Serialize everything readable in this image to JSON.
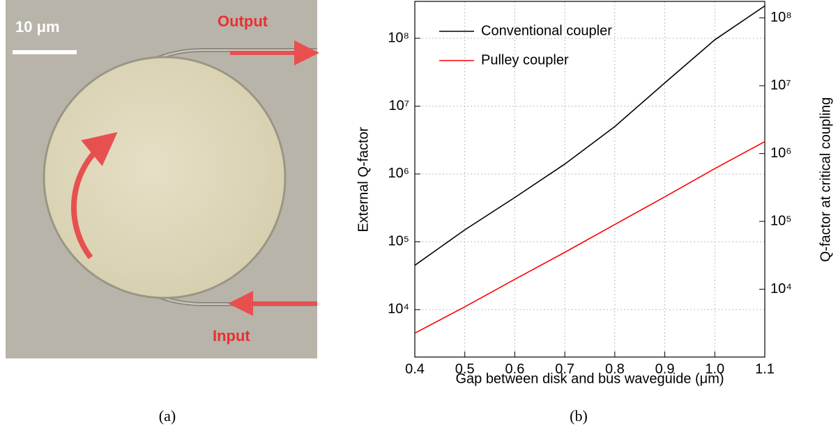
{
  "panel_a": {
    "scale_bar": "10 μm",
    "output": "Output",
    "input": "Input",
    "caption": "(a)"
  },
  "caption_b": "(b)",
  "chart_data": {
    "type": "line",
    "xlabel": "Gap between disk and bus waveguide (μm)",
    "ylabel": "External Q-factor",
    "y2label": "Q-factor at critical coupling",
    "x": [
      0.4,
      0.5,
      0.6,
      0.7,
      0.8,
      0.9,
      1.0,
      1.1
    ],
    "series": [
      {
        "name": "Conventional coupler",
        "color": "#000000",
        "values": [
          45000,
          150000,
          450000,
          1400000,
          5000000,
          22000000,
          95000000,
          300000000
        ]
      },
      {
        "name": "Pulley coupler",
        "color": "#ff0000",
        "values": [
          4500,
          11000,
          28000,
          70000,
          180000,
          460000,
          1200000,
          3000000
        ]
      }
    ],
    "xlim": [
      0.4,
      1.1
    ],
    "xticks": [
      0.4,
      0.5,
      0.6,
      0.7,
      0.8,
      0.9,
      {
        "value": 1.0,
        "label": "1.0"
      },
      1.1
    ],
    "ylim": [
      2000,
      350000000
    ],
    "log_y": true,
    "yticks": [
      {
        "value": 10000,
        "label": "10⁴"
      },
      {
        "value": 100000,
        "label": "10⁵"
      },
      {
        "value": 1000000,
        "label": "10⁶"
      },
      {
        "value": 10000000,
        "label": "10⁷"
      },
      {
        "value": 100000000,
        "label": "10⁸"
      }
    ],
    "y2lim": [
      1000,
      175000000
    ],
    "y2ticks": [
      {
        "value": 10000,
        "label": "10⁴"
      },
      {
        "value": 100000,
        "label": "10⁵"
      },
      {
        "value": 1000000,
        "label": "10⁶"
      },
      {
        "value": 10000000,
        "label": "10⁷"
      },
      {
        "value": 100000000,
        "label": "10⁸"
      }
    ],
    "grid": true,
    "legend": "upper left"
  }
}
